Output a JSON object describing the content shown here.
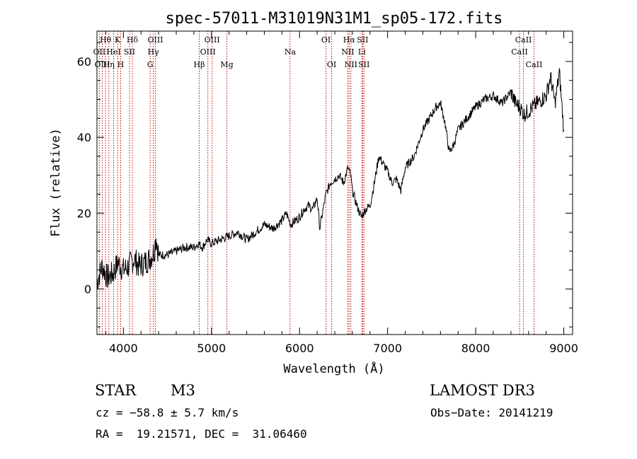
{
  "chart_data": {
    "type": "line",
    "title": "spec-57011-M31019N31M1_sp05-172.fits",
    "xlabel": "Wavelength (Å)",
    "ylabel": "Flux (relative)",
    "xlim": [
      3700,
      9100
    ],
    "ylim": [
      -12,
      68
    ],
    "xticks": [
      4000,
      5000,
      6000,
      7000,
      8000,
      9000
    ],
    "yticks": [
      0,
      20,
      40,
      60
    ],
    "series": [
      {
        "name": "flux",
        "x": [
          3700,
          3760,
          3820,
          3880,
          3940,
          4000,
          4060,
          4120,
          4180,
          4240,
          4300,
          4350,
          4370,
          4400,
          4500,
          4600,
          4700,
          4800,
          4850,
          4900,
          4950,
          5000,
          5100,
          5200,
          5300,
          5400,
          5500,
          5600,
          5700,
          5800,
          5850,
          5900,
          6000,
          6050,
          6100,
          6150,
          6200,
          6230,
          6260,
          6300,
          6350,
          6400,
          6450,
          6500,
          6550,
          6580,
          6600,
          6650,
          6700,
          6750,
          6800,
          6850,
          6900,
          6950,
          7000,
          7050,
          7100,
          7150,
          7200,
          7300,
          7400,
          7500,
          7550,
          7600,
          7650,
          7700,
          7750,
          7800,
          7900,
          8000,
          8100,
          8200,
          8300,
          8400,
          8450,
          8500,
          8550,
          8600,
          8700,
          8800,
          8850,
          8900,
          8950,
          9000
        ],
        "y": [
          2,
          6,
          3,
          4,
          7,
          5,
          6,
          8,
          6,
          7,
          8,
          10,
          14,
          9,
          9,
          10,
          11,
          11,
          12,
          11,
          13,
          12,
          13,
          14,
          15,
          13,
          15,
          17,
          16,
          18,
          20,
          17,
          19,
          21,
          22,
          21,
          24,
          16,
          20,
          25,
          28,
          29,
          30,
          28,
          32,
          30,
          26,
          22,
          19,
          21,
          22,
          28,
          35,
          33,
          31,
          28,
          29,
          26,
          32,
          35,
          42,
          46,
          48,
          49,
          44,
          36,
          38,
          42,
          45,
          48,
          50,
          51,
          49,
          52,
          49,
          48,
          46,
          47,
          49,
          51,
          56,
          49,
          57,
          42
        ]
      }
    ],
    "spectral_lines": [
      {
        "label": "Hθ",
        "wavelength": 3797,
        "row": 1
      },
      {
        "label": "OII",
        "wavelength": 3727,
        "row": 2
      },
      {
        "label": "OIII",
        "wavelength": 3760,
        "row": 3
      },
      {
        "label": "K",
        "wavelength": 3934,
        "row": 1
      },
      {
        "label": "HeI",
        "wavelength": 3889,
        "row": 2
      },
      {
        "label": "Hη",
        "wavelength": 3835,
        "row": 3
      },
      {
        "label": "SII",
        "wavelength": 4070,
        "row": 2
      },
      {
        "label": "H",
        "wavelength": 3969,
        "row": 3
      },
      {
        "label": "Hδ",
        "wavelength": 4102,
        "row": 1
      },
      {
        "label": "OIII",
        "wavelength": 4363,
        "row": 1
      },
      {
        "label": "Hγ",
        "wavelength": 4340,
        "row": 2
      },
      {
        "label": "G",
        "wavelength": 4304,
        "row": 3
      },
      {
        "label": "OIII",
        "wavelength": 5007,
        "row": 1
      },
      {
        "label": "OIII",
        "wavelength": 4959,
        "row": 2
      },
      {
        "label": "Hβ",
        "wavelength": 4861,
        "row": 3
      },
      {
        "label": "Mg",
        "wavelength": 5175,
        "row": 3
      },
      {
        "label": "Na",
        "wavelength": 5893,
        "row": 2
      },
      {
        "label": "OI",
        "wavelength": 6300,
        "row": 1
      },
      {
        "label": "OI",
        "wavelength": 6364,
        "row": 3
      },
      {
        "label": "Hα",
        "wavelength": 6563,
        "row": 1
      },
      {
        "label": "SII",
        "wavelength": 6716,
        "row": 1
      },
      {
        "label": "NII",
        "wavelength": 6548,
        "row": 2
      },
      {
        "label": "Li",
        "wavelength": 6708,
        "row": 2
      },
      {
        "label": "NII",
        "wavelength": 6583,
        "row": 3
      },
      {
        "label": "SII",
        "wavelength": 6731,
        "row": 3
      },
      {
        "label": "CaII",
        "wavelength": 8542,
        "row": 1
      },
      {
        "label": "CaII",
        "wavelength": 8498,
        "row": 2
      },
      {
        "label": "CaII",
        "wavelength": 8662,
        "row": 3
      }
    ]
  },
  "info": {
    "class": "STAR",
    "subclass": "M3",
    "survey": "LAMOST DR3",
    "cz": "cz = −58.8 ± 5.7 km/s",
    "obs_date": "Obs−Date: 20141219",
    "coords": "RA =  19.21571, DEC =  31.06460"
  }
}
